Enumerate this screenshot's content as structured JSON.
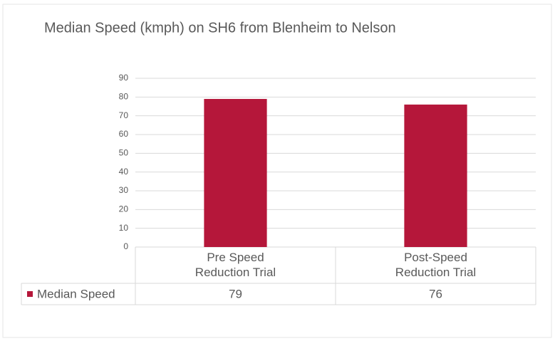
{
  "chart_data": {
    "type": "bar",
    "title": "Median Speed (kmph) on SH6 from Blenheim to Nelson",
    "categories": [
      "Pre Speed Reduction Trial",
      "Post-Speed Reduction Trial"
    ],
    "series": [
      {
        "name": "Median Speed",
        "color": "#b5173a",
        "values": [
          79,
          76
        ]
      }
    ],
    "ylim": [
      0,
      90
    ],
    "yticks": [
      0,
      10,
      20,
      30,
      40,
      50,
      60,
      70,
      80,
      90
    ],
    "grid": true,
    "data_table": true
  }
}
